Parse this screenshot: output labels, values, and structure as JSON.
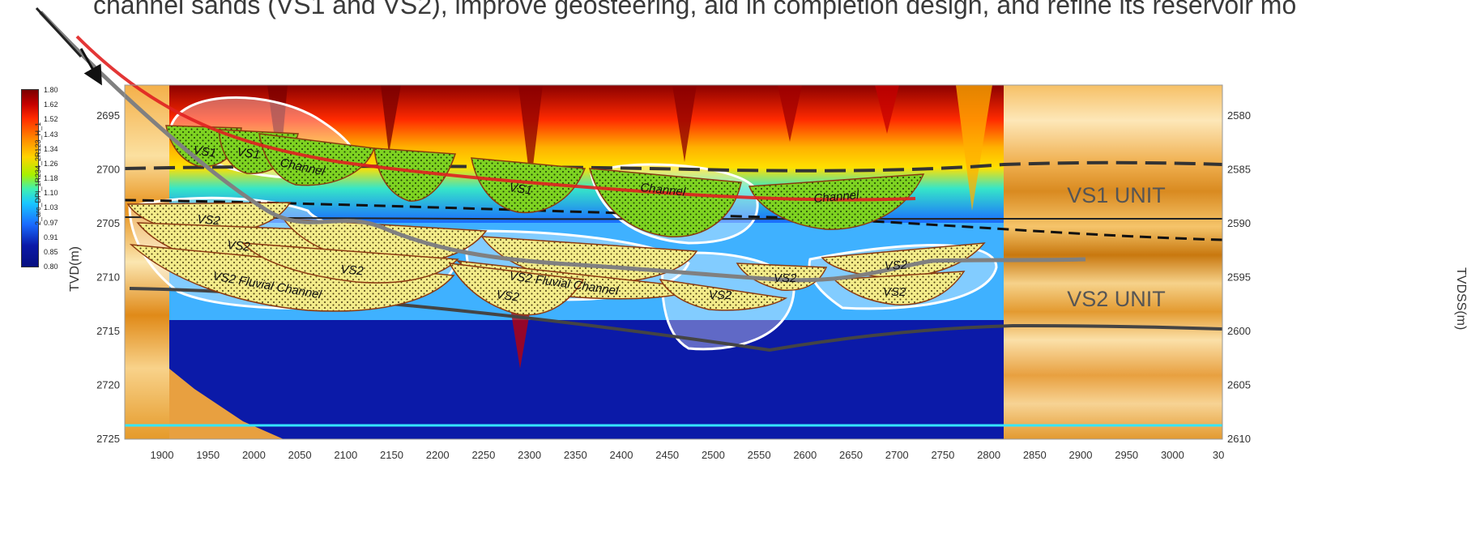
{
  "caption": "channel sands (VS1 and VS2), improve geosteering, aid in completion design, and refine its reservoir mo",
  "colorbar": {
    "title": "2_arc_DPI_1R234_2R123_H_1",
    "ticks": [
      "1.80",
      "1.62",
      "1.52",
      "1.43",
      "1.34",
      "1.26",
      "1.18",
      "1.10",
      "1.03",
      "0.97",
      "0.91",
      "0.85",
      "0.80"
    ]
  },
  "axes": {
    "ylabel_left": "TVD(m)",
    "ylabel_right": "TVDSS(m)",
    "x_ticks": [
      "1900",
      "1950",
      "2000",
      "2050",
      "2100",
      "2150",
      "2200",
      "2250",
      "2300",
      "2350",
      "2400",
      "2450",
      "2500",
      "2550",
      "2600",
      "2650",
      "2700",
      "2750",
      "2800",
      "2850",
      "2900",
      "2950",
      "3000",
      "30"
    ],
    "y_left_ticks": [
      "2695",
      "2700",
      "2705",
      "2710",
      "2715",
      "2720",
      "2725"
    ],
    "y_right_ticks": [
      "2580",
      "2585",
      "2590",
      "2595",
      "2600",
      "2605",
      "2610"
    ]
  },
  "units": {
    "vs1": "VS1 UNIT",
    "vs2": "VS2 UNIT"
  },
  "channels": {
    "vs1": [
      "VS1",
      "VS1",
      "Channel",
      "VS1",
      "Channel",
      "Channel"
    ],
    "vs2": [
      "VS2",
      "VS2",
      "VS2",
      "VS2 Fluvial Channel",
      "VS2",
      "VS2 Fluvial Channel",
      "VS2",
      "VS2",
      "VS2",
      "VS2"
    ]
  },
  "colors": {
    "vs1_fill": "#7ed321",
    "vs2_fill": "#f3ec8a",
    "channel_outline": "#8b3a10",
    "well_trajectory": "#e02020",
    "well_path_grey": "#8a8a8a",
    "low_resistivity": "#0b1aa8",
    "high_resistivity": "#8b0000"
  }
}
